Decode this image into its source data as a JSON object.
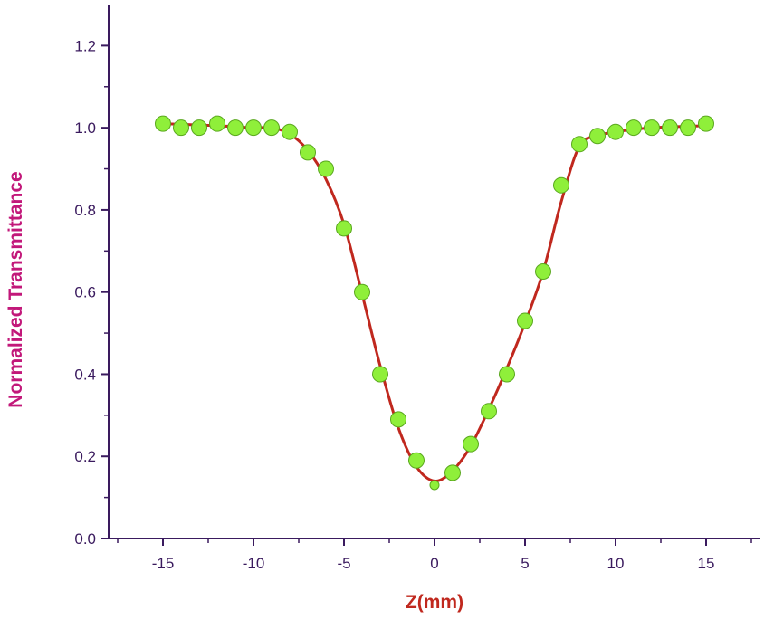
{
  "chart_data": {
    "type": "scatter",
    "title": "",
    "xlabel": "Z(mm)",
    "ylabel": "Normalized Transmittance",
    "xlim": [
      -18,
      18
    ],
    "ylim": [
      0.0,
      1.3
    ],
    "x_ticks": [
      -15,
      -10,
      -5,
      0,
      5,
      10,
      15
    ],
    "x_tick_labels": [
      "-15",
      "-10",
      "-5",
      "0",
      "5",
      "10",
      "15"
    ],
    "y_ticks": [
      0.0,
      0.2,
      0.4,
      0.6,
      0.8,
      1.0,
      1.2
    ],
    "y_tick_labels": [
      "0.0",
      "0.2",
      "0.4",
      "0.6",
      "0.8",
      "1.0",
      "1.2"
    ],
    "grid": false,
    "legend": "none",
    "series": [
      {
        "kind": "points",
        "x": [
          -15,
          -14,
          -13,
          -12,
          -11,
          -10,
          -9,
          -8,
          -7,
          -6,
          -5,
          -4,
          -3,
          -2,
          -1,
          0,
          1,
          2,
          3,
          4,
          5,
          6,
          7,
          8,
          9,
          10,
          11,
          12,
          13,
          14,
          15
        ],
        "y": [
          1.01,
          1.0,
          1.0,
          1.01,
          1.0,
          1.0,
          1.0,
          0.99,
          0.94,
          0.9,
          0.755,
          0.6,
          0.4,
          0.29,
          0.19,
          0.13,
          0.16,
          0.23,
          0.31,
          0.4,
          0.53,
          0.65,
          0.86,
          0.96,
          0.98,
          0.99,
          1.0,
          1.0,
          1.0,
          1.0,
          1.01
        ],
        "color": "#8fef3a",
        "edge_color": "#5aa81e"
      },
      {
        "kind": "fit-line",
        "x": [
          -15,
          -12,
          -10,
          -9,
          -8,
          -7,
          -6,
          -5,
          -4,
          -3,
          -2,
          -1,
          0,
          1,
          2,
          3,
          4,
          5,
          6,
          7,
          8,
          9,
          10,
          12,
          15
        ],
        "y": [
          1.01,
          1.005,
          1.0,
          1.0,
          0.985,
          0.945,
          0.875,
          0.765,
          0.595,
          0.42,
          0.27,
          0.175,
          0.14,
          0.165,
          0.225,
          0.315,
          0.415,
          0.525,
          0.65,
          0.82,
          0.955,
          0.98,
          0.99,
          1.0,
          1.005
        ],
        "color": "#c0281e"
      }
    ],
    "colors": {
      "axis": "#3a1a5e",
      "ylabel": "#c2187a",
      "xlabel": "#c0281e"
    }
  }
}
